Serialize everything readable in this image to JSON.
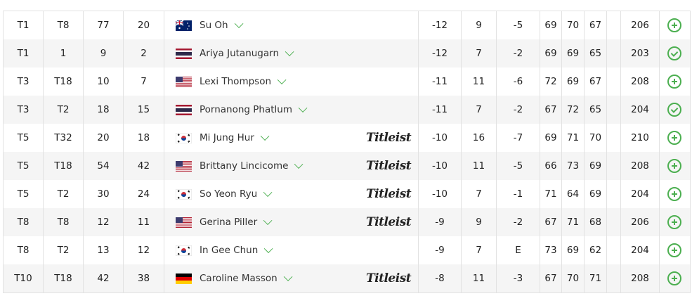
{
  "accent": "#4caf50",
  "sponsor_text": "Titleist",
  "rows": [
    {
      "pos": "T1",
      "prev": "T8",
      "c3": "77",
      "c4": "20",
      "flag": "AUS",
      "name": "Su Oh",
      "sponsor": false,
      "total": "-12",
      "thru": "9",
      "today": "-5",
      "r1": "69",
      "r2": "70",
      "r3": "67",
      "r4": "",
      "strokes": "206",
      "action": "add"
    },
    {
      "pos": "T1",
      "prev": "1",
      "c3": "9",
      "c4": "2",
      "flag": "THA",
      "name": "Ariya Jutanugarn",
      "sponsor": false,
      "total": "-12",
      "thru": "7",
      "today": "-2",
      "r1": "69",
      "r2": "69",
      "r3": "65",
      "r4": "",
      "strokes": "203",
      "action": "check"
    },
    {
      "pos": "T3",
      "prev": "T18",
      "c3": "10",
      "c4": "7",
      "flag": "USA",
      "name": "Lexi Thompson",
      "sponsor": false,
      "total": "-11",
      "thru": "11",
      "today": "-6",
      "r1": "72",
      "r2": "69",
      "r3": "67",
      "r4": "",
      "strokes": "208",
      "action": "add"
    },
    {
      "pos": "T3",
      "prev": "T2",
      "c3": "18",
      "c4": "15",
      "flag": "THA",
      "name": "Pornanong Phatlum",
      "sponsor": false,
      "total": "-11",
      "thru": "7",
      "today": "-2",
      "r1": "67",
      "r2": "72",
      "r3": "65",
      "r4": "",
      "strokes": "204",
      "action": "check"
    },
    {
      "pos": "T5",
      "prev": "T32",
      "c3": "20",
      "c4": "18",
      "flag": "KOR",
      "name": "Mi Jung Hur",
      "sponsor": true,
      "total": "-10",
      "thru": "16",
      "today": "-7",
      "r1": "69",
      "r2": "71",
      "r3": "70",
      "r4": "",
      "strokes": "210",
      "action": "add"
    },
    {
      "pos": "T5",
      "prev": "T18",
      "c3": "54",
      "c4": "42",
      "flag": "USA",
      "name": "Brittany Lincicome",
      "sponsor": true,
      "total": "-10",
      "thru": "11",
      "today": "-5",
      "r1": "66",
      "r2": "73",
      "r3": "69",
      "r4": "",
      "strokes": "208",
      "action": "add"
    },
    {
      "pos": "T5",
      "prev": "T2",
      "c3": "30",
      "c4": "24",
      "flag": "KOR",
      "name": "So Yeon Ryu",
      "sponsor": true,
      "total": "-10",
      "thru": "7",
      "today": "-1",
      "r1": "71",
      "r2": "64",
      "r3": "69",
      "r4": "",
      "strokes": "204",
      "action": "add"
    },
    {
      "pos": "T8",
      "prev": "T8",
      "c3": "12",
      "c4": "11",
      "flag": "USA",
      "name": "Gerina Piller",
      "sponsor": true,
      "total": "-9",
      "thru": "9",
      "today": "-2",
      "r1": "67",
      "r2": "71",
      "r3": "68",
      "r4": "",
      "strokes": "206",
      "action": "add"
    },
    {
      "pos": "T8",
      "prev": "T2",
      "c3": "13",
      "c4": "12",
      "flag": "KOR",
      "name": "In Gee Chun",
      "sponsor": false,
      "total": "-9",
      "thru": "7",
      "today": "E",
      "r1": "73",
      "r2": "69",
      "r3": "62",
      "r4": "",
      "strokes": "204",
      "action": "add"
    },
    {
      "pos": "T10",
      "prev": "T18",
      "c3": "42",
      "c4": "38",
      "flag": "GER",
      "name": "Caroline Masson",
      "sponsor": true,
      "total": "-8",
      "thru": "11",
      "today": "-3",
      "r1": "67",
      "r2": "70",
      "r3": "71",
      "r4": "",
      "strokes": "208",
      "action": "add"
    }
  ]
}
